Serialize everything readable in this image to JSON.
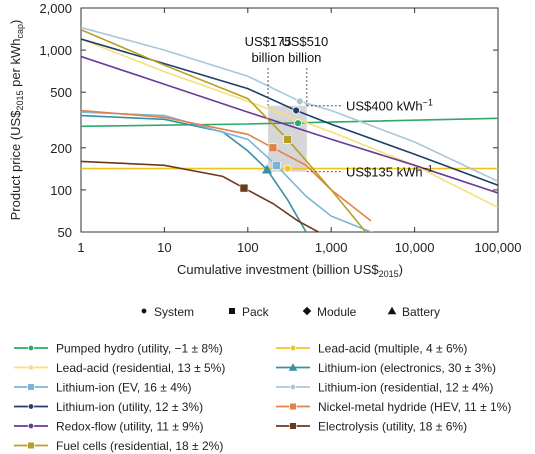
{
  "chart_data": {
    "type": "line",
    "xlabel": "Cumulative investment (billion US$",
    "xlabel_sub": "2015",
    "xlabel_end": ")",
    "ylabel": "Product price (US$",
    "ylabel_sub1": "2015",
    "ylabel_mid": " per kWh",
    "ylabel_sub2": "cap",
    "ylabel_end": ")",
    "x_scale": "log",
    "y_scale": "log",
    "xlim": [
      1,
      100000
    ],
    "ylim": [
      50,
      2000
    ],
    "x_ticks": [
      1,
      10,
      100,
      1000,
      10000,
      100000
    ],
    "x_tick_labels": [
      "1",
      "10",
      "100",
      "1,000",
      "10,000",
      "100,000"
    ],
    "y_ticks": [
      50,
      100,
      200,
      500,
      1000,
      2000
    ],
    "y_tick_labels": [
      "50",
      "100",
      "200",
      "500",
      "1,000",
      "2,000"
    ],
    "annotations": {
      "inv175": [
        "US$175",
        "billion"
      ],
      "inv510": [
        "US$510",
        "billion"
      ],
      "p400": "US$400 kWh",
      "p400_sup": "−1",
      "p135": "US$135 kWh",
      "p135_sup": "−1"
    },
    "shaded_region": {
      "x": [
        175,
        510
      ],
      "y": [
        135,
        400
      ]
    },
    "marker_legend": [
      "System",
      "Pack",
      "Module",
      "Battery"
    ],
    "series": [
      {
        "name": "Pumped hydro (utility, −1 ± 8%)",
        "color": "#2ea86b",
        "marker": "system",
        "x": [
          1,
          100,
          100000
        ],
        "y": [
          285,
          296,
          325
        ],
        "mark": [
          400,
          300
        ]
      },
      {
        "name": "Lead-acid (multiple, 4 ± 6%)",
        "color": "#f0c419",
        "marker": "system",
        "x": [
          1,
          10,
          100,
          300,
          100000
        ],
        "y": [
          142,
          142,
          142,
          142,
          142
        ],
        "mark": [
          300,
          142
        ]
      },
      {
        "name": "Lead-acid (residential, 13 ± 5%)",
        "color": "#f6e07a",
        "marker": "system",
        "x": [
          1,
          10,
          100,
          1000,
          10000,
          100000
        ],
        "y": [
          1200,
          700,
          430,
          260,
          150,
          75
        ],
        "mark": null
      },
      {
        "name": "Lithium-ion (electronics, 30 ± 3%)",
        "color": "#3a8fa6",
        "marker": "battery",
        "x": [
          1,
          10,
          50,
          100,
          170,
          300,
          500
        ],
        "y": [
          340,
          320,
          260,
          190,
          140,
          85,
          50
        ],
        "mark": [
          170,
          140
        ]
      },
      {
        "name": "Lithium-ion (EV, 16 ± 4%)",
        "color": "#79b4d9",
        "marker": "pack",
        "x": [
          1,
          10,
          100,
          220,
          500,
          1000,
          3000,
          5000
        ],
        "y": [
          360,
          340,
          230,
          150,
          90,
          65,
          50,
          45
        ],
        "mark": [
          220,
          150
        ]
      },
      {
        "name": "Lithium-ion (residential, 12 ± 4%)",
        "color": "#a9c7d6",
        "marker": "system",
        "x": [
          1,
          10,
          100,
          420,
          1000,
          10000,
          100000
        ],
        "y": [
          1450,
          1000,
          650,
          430,
          370,
          220,
          115
        ],
        "mark": [
          420,
          430
        ]
      },
      {
        "name": "Lithium-ion (utility, 12 ± 3%)",
        "color": "#1f3f68",
        "marker": "system",
        "x": [
          1,
          10,
          100,
          380,
          1000,
          10000,
          100000
        ],
        "y": [
          1200,
          800,
          530,
          370,
          295,
          180,
          108
        ],
        "mark": [
          380,
          370
        ]
      },
      {
        "name": "Nickel-metal hydride (HEV, 11 ± 1%)",
        "color": "#e0824a",
        "marker": "pack",
        "x": [
          1,
          10,
          100,
          200,
          500,
          1000,
          3000
        ],
        "y": [
          370,
          330,
          250,
          200,
          150,
          100,
          60
        ],
        "mark": [
          200,
          200
        ]
      },
      {
        "name": "Redox-flow (utility, 11 ± 9%)",
        "color": "#6a3a97",
        "marker": "system",
        "x": [
          1,
          10,
          100,
          1000,
          10000,
          100000
        ],
        "y": [
          900,
          570,
          360,
          230,
          150,
          95
        ],
        "mark": null
      },
      {
        "name": "Electrolysis (utility, 18 ± 6%)",
        "color": "#6a3a1f",
        "marker": "pack",
        "x": [
          1,
          10,
          50,
          90,
          200,
          400,
          800
        ],
        "y": [
          160,
          150,
          125,
          103,
          80,
          60,
          48
        ],
        "mark": [
          90,
          103
        ]
      },
      {
        "name": "Fuel cells (residential, 18 ± 2%)",
        "color": "#b8a024",
        "marker": "pack",
        "x": [
          1,
          10,
          100,
          300,
          1000,
          3000
        ],
        "y": [
          1400,
          780,
          450,
          230,
          100,
          45
        ],
        "mark": [
          300,
          230
        ]
      }
    ],
    "legend_order": [
      "Pumped hydro (utility, −1 ± 8%)",
      "Lead-acid (multiple, 4 ± 6%)",
      "Lead-acid (residential, 13 ± 5%)",
      "Lithium-ion (electronics, 30 ± 3%)",
      "Lithium-ion (EV, 16 ± 4%)",
      "Lithium-ion (residential, 12 ± 4%)",
      "Lithium-ion (utility, 12 ± 3%)",
      "Nickel-metal hydride (HEV, 11 ± 1%)",
      "Redox-flow (utility, 11 ± 9%)",
      "Electrolysis (utility, 18 ± 6%)",
      "Fuel cells (residential, 18 ± 2%)"
    ]
  }
}
